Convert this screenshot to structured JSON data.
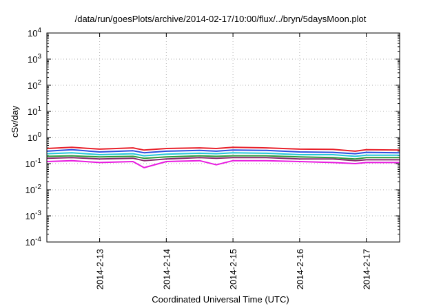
{
  "chart_data": {
    "type": "line",
    "title": "/data/run/goesPlots/archive/2014-02-17/10:00/flux/../bryn/5daysMoon.plot",
    "xlabel": "Coordinated Universal Time (UTC)",
    "ylabel": "cSv/day",
    "yscale": "log",
    "ylim": [
      0.0001,
      10000
    ],
    "y_ticks": [
      {
        "value": 0.0001,
        "base": "10",
        "exp": "-4"
      },
      {
        "value": 0.001,
        "base": "10",
        "exp": "-3"
      },
      {
        "value": 0.01,
        "base": "10",
        "exp": "-2"
      },
      {
        "value": 0.1,
        "base": "10",
        "exp": "-1"
      },
      {
        "value": 1,
        "base": "10",
        "exp": "0"
      },
      {
        "value": 10,
        "base": "10",
        "exp": "1"
      },
      {
        "value": 100,
        "base": "10",
        "exp": "2"
      },
      {
        "value": 1000,
        "base": "10",
        "exp": "3"
      },
      {
        "value": 10000,
        "base": "10",
        "exp": "4"
      }
    ],
    "xlim": [
      "2014-02-12T05:00",
      "2014-02-17T12:00"
    ],
    "x_ticks": [
      {
        "value": "2014-02-13T00:00",
        "label": "2014-2-13"
      },
      {
        "value": "2014-02-14T00:00",
        "label": "2014-2-14"
      },
      {
        "value": "2014-02-15T00:00",
        "label": "2014-2-15"
      },
      {
        "value": "2014-02-16T00:00",
        "label": "2014-2-16"
      },
      {
        "value": "2014-02-17T00:00",
        "label": "2014-2-17"
      }
    ],
    "grid": true,
    "x": [
      "2014-02-12T05:00",
      "2014-02-12T14:00",
      "2014-02-13T00:00",
      "2014-02-13T12:00",
      "2014-02-13T16:00",
      "2014-02-14T00:00",
      "2014-02-14T12:00",
      "2014-02-14T18:00",
      "2014-02-15T00:00",
      "2014-02-15T12:00",
      "2014-02-16T00:00",
      "2014-02-16T12:00",
      "2014-02-16T20:00",
      "2014-02-17T00:00",
      "2014-02-17T12:00"
    ],
    "series": [
      {
        "color": "#e8202a",
        "values": [
          0.38,
          0.42,
          0.36,
          0.4,
          0.33,
          0.38,
          0.4,
          0.38,
          0.42,
          0.4,
          0.36,
          0.35,
          0.3,
          0.34,
          0.33
        ]
      },
      {
        "color": "#2a4fe0",
        "values": [
          0.3,
          0.34,
          0.28,
          0.31,
          0.26,
          0.3,
          0.32,
          0.3,
          0.33,
          0.32,
          0.28,
          0.27,
          0.24,
          0.27,
          0.26
        ]
      },
      {
        "color": "#25c7d8",
        "values": [
          0.24,
          0.26,
          0.22,
          0.24,
          0.2,
          0.23,
          0.25,
          0.24,
          0.26,
          0.25,
          0.22,
          0.22,
          0.19,
          0.21,
          0.21
        ]
      },
      {
        "color": "#2e9a3c",
        "values": [
          0.19,
          0.2,
          0.18,
          0.19,
          0.16,
          0.18,
          0.2,
          0.19,
          0.2,
          0.2,
          0.18,
          0.17,
          0.15,
          0.17,
          0.17
        ]
      },
      {
        "color": "#8a2a6e",
        "values": [
          0.16,
          0.17,
          0.15,
          0.16,
          0.13,
          0.15,
          0.17,
          0.16,
          0.17,
          0.17,
          0.15,
          0.15,
          0.13,
          0.14,
          0.14
        ]
      },
      {
        "color": "#e81be0",
        "values": [
          0.12,
          0.13,
          0.11,
          0.12,
          0.07,
          0.12,
          0.13,
          0.09,
          0.13,
          0.13,
          0.12,
          0.11,
          0.1,
          0.11,
          0.11
        ]
      }
    ]
  }
}
